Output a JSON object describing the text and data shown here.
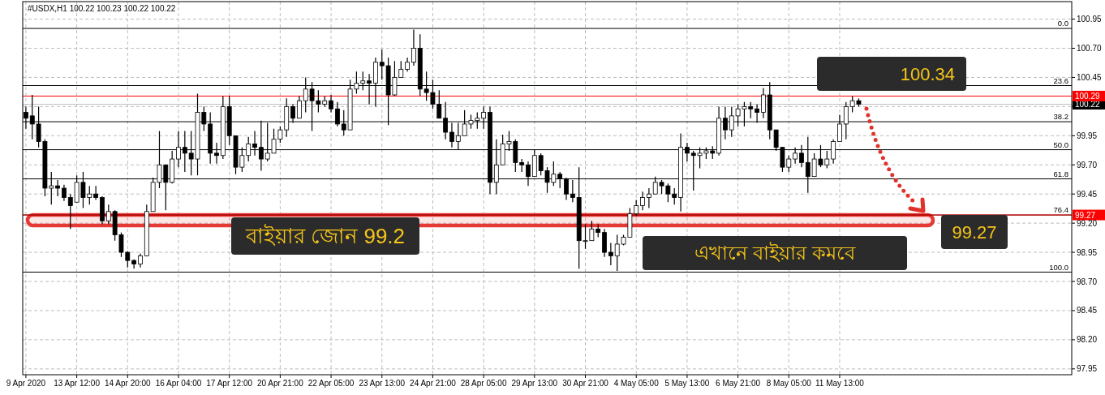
{
  "chart_data": {
    "type": "candlestick",
    "title": "#USDX,H1 100.22 100.23 100.22 100.22",
    "color": "#000000",
    "grid": true,
    "categories": [
      "9 Apr 2020",
      null,
      null,
      null,
      null,
      null,
      null,
      null,
      "13 Apr 12:00",
      null,
      null,
      null,
      null,
      null,
      null,
      null,
      "14 Apr 20:00",
      null,
      null,
      null,
      null,
      null,
      null,
      null,
      "16 Apr 04:00",
      null,
      null,
      null,
      null,
      null,
      null,
      null,
      "17 Apr 12:00",
      null,
      null,
      null,
      null,
      null,
      null,
      null,
      "20 Apr 21:00",
      null,
      null,
      null,
      null,
      null,
      null,
      null,
      "22 Apr 05:00",
      null,
      null,
      null,
      null,
      null,
      null,
      null,
      "23 Apr 13:00",
      null,
      null,
      null,
      null,
      null,
      null,
      null,
      "24 Apr 21:00",
      null,
      null,
      null,
      null,
      null,
      null,
      null,
      "28 Apr 05:00",
      null,
      null,
      null,
      null,
      null,
      null,
      null,
      "29 Apr 13:00",
      null,
      null,
      null,
      null,
      null,
      null,
      null,
      "30 Apr 21:00",
      null,
      null,
      null,
      null,
      null,
      null,
      null,
      "4 May 05:00",
      null,
      null,
      null,
      null,
      null,
      null,
      null,
      "5 May 13:00",
      null,
      null,
      null,
      null,
      null,
      null,
      null,
      "6 May 21:00",
      null,
      null,
      null,
      null,
      null,
      null,
      null,
      "8 May 05:00",
      null,
      null,
      null,
      null,
      null,
      null,
      null,
      "11 May 13:00",
      null,
      null,
      null,
      null,
      null,
      null,
      null,
      null,
      null,
      null,
      null,
      null,
      null,
      null,
      null,
      null,
      null,
      null,
      null,
      null,
      null,
      null,
      null,
      null,
      null,
      null,
      null,
      null,
      null,
      null,
      null,
      null,
      null,
      null,
      null,
      null
    ],
    "ohlc": [
      [
        100.15,
        100.2,
        100.01,
        100.1
      ],
      [
        100.12,
        100.3,
        99.92,
        100.05
      ],
      [
        100.05,
        100.2,
        99.85,
        99.9
      ],
      [
        99.9,
        99.92,
        99.43,
        99.5
      ],
      [
        99.5,
        99.64,
        99.36,
        99.52
      ],
      [
        99.52,
        99.57,
        99.43,
        99.5
      ],
      [
        99.5,
        99.53,
        99.39,
        99.42
      ],
      [
        99.42,
        99.45,
        99.15,
        99.35
      ],
      [
        99.38,
        99.61,
        99.38,
        99.55
      ],
      [
        99.55,
        99.64,
        99.33,
        99.42
      ],
      [
        99.42,
        99.52,
        99.36,
        99.45
      ],
      [
        99.45,
        99.52,
        99.4,
        99.42
      ],
      [
        99.42,
        99.43,
        99.19,
        99.22
      ],
      [
        99.22,
        99.36,
        99.19,
        99.3
      ],
      [
        99.3,
        99.31,
        99.05,
        99.1
      ],
      [
        99.1,
        99.12,
        98.91,
        98.95
      ],
      [
        98.95,
        98.96,
        98.82,
        98.88
      ],
      [
        98.88,
        98.89,
        98.81,
        98.85
      ],
      [
        98.85,
        98.94,
        98.82,
        98.92
      ],
      [
        98.92,
        99.36,
        98.92,
        99.3
      ],
      [
        99.3,
        99.59,
        99.3,
        99.55
      ],
      [
        99.55,
        99.99,
        99.5,
        99.7
      ],
      [
        99.7,
        99.7,
        99.31,
        99.55
      ],
      [
        99.55,
        99.82,
        99.54,
        99.75
      ],
      [
        99.75,
        99.99,
        99.68,
        99.85
      ],
      [
        99.85,
        99.99,
        99.64,
        99.8
      ],
      [
        99.8,
        99.99,
        99.61,
        99.75
      ],
      [
        99.75,
        100.31,
        99.61,
        100.15
      ],
      [
        100.15,
        100.2,
        99.99,
        100.05
      ],
      [
        100.05,
        100.15,
        99.71,
        99.8
      ],
      [
        99.8,
        99.89,
        99.71,
        99.78
      ],
      [
        99.78,
        100.29,
        99.75,
        100.2
      ],
      [
        100.2,
        100.29,
        99.87,
        99.95
      ],
      [
        99.95,
        99.95,
        99.62,
        99.68
      ],
      [
        99.68,
        99.85,
        99.64,
        99.78
      ],
      [
        99.78,
        99.94,
        99.73,
        99.88
      ],
      [
        99.88,
        99.99,
        99.78,
        99.85
      ],
      [
        99.85,
        100.08,
        99.65,
        99.75
      ],
      [
        99.75,
        100.06,
        99.73,
        99.8
      ],
      [
        99.8,
        100.01,
        99.8,
        99.92
      ],
      [
        99.92,
        100.03,
        99.89,
        100.0
      ],
      [
        100.0,
        100.27,
        99.94,
        100.2
      ],
      [
        100.2,
        100.22,
        100.06,
        100.1
      ],
      [
        100.1,
        100.29,
        100.1,
        100.25
      ],
      [
        100.25,
        100.45,
        100.15,
        100.35
      ],
      [
        100.35,
        100.41,
        99.99,
        100.25
      ],
      [
        100.25,
        100.34,
        100.15,
        100.22
      ],
      [
        100.22,
        100.29,
        100.2,
        100.25
      ],
      [
        100.25,
        100.3,
        100.15,
        100.18
      ],
      [
        100.18,
        100.24,
        100.03,
        100.05
      ],
      [
        100.05,
        100.17,
        99.95,
        100.0
      ],
      [
        100.0,
        100.43,
        100.0,
        100.35
      ],
      [
        100.35,
        100.5,
        100.31,
        100.4
      ],
      [
        100.4,
        100.5,
        100.34,
        100.42
      ],
      [
        100.42,
        100.48,
        100.22,
        100.4
      ],
      [
        100.4,
        100.62,
        100.2,
        100.58
      ],
      [
        100.58,
        100.69,
        100.43,
        100.55
      ],
      [
        100.55,
        100.62,
        100.04,
        100.3
      ],
      [
        100.3,
        100.59,
        100.29,
        100.45
      ],
      [
        100.45,
        100.59,
        100.45,
        100.52
      ],
      [
        100.52,
        100.62,
        100.5,
        100.58
      ],
      [
        100.58,
        100.86,
        100.55,
        100.7
      ],
      [
        100.7,
        100.82,
        100.29,
        100.35
      ],
      [
        100.35,
        100.5,
        100.25,
        100.32
      ],
      [
        100.32,
        100.43,
        100.18,
        100.22
      ],
      [
        100.22,
        100.34,
        100.1,
        100.1
      ],
      [
        100.1,
        100.24,
        99.92,
        99.98
      ],
      [
        99.98,
        100.06,
        99.85,
        99.9
      ],
      [
        99.9,
        100.06,
        99.83,
        99.95
      ],
      [
        99.95,
        100.17,
        99.95,
        100.05
      ],
      [
        100.05,
        100.13,
        100.01,
        100.08
      ],
      [
        100.08,
        100.15,
        100.01,
        100.1
      ],
      [
        100.1,
        100.2,
        100.01,
        100.15
      ],
      [
        100.15,
        100.2,
        99.45,
        99.55
      ],
      [
        99.55,
        99.92,
        99.45,
        99.7
      ],
      [
        99.7,
        99.96,
        99.7,
        99.88
      ],
      [
        99.88,
        99.99,
        99.82,
        99.9
      ],
      [
        99.9,
        99.92,
        99.64,
        99.72
      ],
      [
        99.72,
        99.75,
        99.64,
        99.7
      ],
      [
        99.7,
        99.73,
        99.52,
        99.6
      ],
      [
        99.6,
        99.83,
        99.6,
        99.78
      ],
      [
        99.78,
        99.8,
        99.61,
        99.65
      ],
      [
        99.65,
        99.68,
        99.46,
        99.55
      ],
      [
        99.55,
        99.73,
        99.52,
        99.62
      ],
      [
        99.62,
        99.64,
        99.5,
        99.58
      ],
      [
        99.58,
        99.59,
        99.4,
        99.45
      ],
      [
        99.45,
        99.57,
        99.38,
        99.42
      ],
      [
        99.42,
        99.68,
        98.81,
        99.05
      ],
      [
        99.05,
        99.19,
        98.98,
        99.05
      ],
      [
        99.05,
        99.22,
        99.05,
        99.15
      ],
      [
        99.15,
        99.19,
        99.08,
        99.12
      ],
      [
        99.12,
        99.15,
        98.91,
        98.95
      ],
      [
        98.95,
        99.03,
        98.84,
        98.92
      ],
      [
        98.92,
        99.1,
        98.79,
        99.02
      ],
      [
        99.02,
        99.1,
        99.01,
        99.08
      ],
      [
        99.08,
        99.33,
        99.08,
        99.28
      ],
      [
        99.28,
        99.4,
        99.26,
        99.35
      ],
      [
        99.35,
        99.47,
        99.31,
        99.42
      ],
      [
        99.42,
        99.5,
        99.33,
        99.45
      ],
      [
        99.45,
        99.6,
        99.45,
        99.55
      ],
      [
        99.55,
        99.57,
        99.45,
        99.52
      ],
      [
        99.52,
        99.54,
        99.38,
        99.45
      ],
      [
        99.45,
        99.5,
        99.36,
        99.42
      ],
      [
        99.42,
        99.97,
        99.3,
        99.85
      ],
      [
        99.85,
        99.89,
        99.73,
        99.8
      ],
      [
        99.8,
        99.82,
        99.48,
        99.78
      ],
      [
        99.78,
        99.85,
        99.67,
        99.8
      ],
      [
        99.8,
        99.85,
        99.75,
        99.82
      ],
      [
        99.82,
        99.86,
        99.75,
        99.8
      ],
      [
        99.8,
        100.2,
        99.78,
        100.1
      ],
      [
        100.1,
        100.2,
        99.92,
        100.0
      ],
      [
        100.0,
        100.2,
        99.94,
        100.12
      ],
      [
        100.12,
        100.22,
        100.03,
        100.18
      ],
      [
        100.18,
        100.24,
        100.03,
        100.2
      ],
      [
        100.2,
        100.24,
        100.1,
        100.18
      ],
      [
        100.18,
        100.22,
        100.06,
        100.15
      ],
      [
        100.15,
        100.36,
        100.1,
        100.3
      ],
      [
        100.3,
        100.41,
        99.92,
        100.0
      ],
      [
        100.0,
        100.0,
        99.82,
        99.85
      ],
      [
        99.85,
        99.85,
        99.64,
        99.68
      ],
      [
        99.68,
        99.78,
        99.64,
        99.75
      ],
      [
        99.75,
        99.85,
        99.71,
        99.8
      ],
      [
        99.8,
        99.87,
        99.68,
        99.72
      ],
      [
        99.72,
        99.94,
        99.46,
        99.6
      ],
      [
        99.6,
        99.8,
        99.6,
        99.75
      ],
      [
        99.75,
        99.87,
        99.68,
        99.7
      ],
      [
        99.7,
        99.82,
        99.67,
        99.75
      ],
      [
        99.75,
        99.92,
        99.71,
        99.9
      ],
      [
        99.9,
        100.13,
        99.9,
        100.05
      ],
      [
        100.05,
        100.24,
        99.92,
        100.2
      ],
      [
        100.2,
        100.29,
        100.15,
        100.25
      ],
      [
        100.25,
        100.27,
        100.2,
        100.22
      ],
      null,
      null,
      null,
      null,
      null,
      null,
      null,
      null,
      null,
      null,
      null,
      null,
      null,
      null,
      null,
      null,
      null,
      null,
      null,
      null,
      null,
      null,
      null,
      null,
      null,
      null,
      null,
      null,
      null,
      null,
      null,
      null,
      null
    ],
    "ylim": [
      97.9,
      101.1
    ],
    "yticks": [
      100.95,
      {
        "value": 100.7,
        "label": "100.70"
      },
      100.45,
      {
        "value": 100.2,
        "label": null
      },
      99.95,
      {
        "value": 99.7,
        "label": "99.70"
      },
      99.45,
      {
        "value": 99.2,
        "label": "99.20"
      },
      98.95,
      {
        "value": 98.7,
        "label": "98.70"
      },
      98.45,
      {
        "value": 98.2,
        "label": "98.20"
      },
      97.95
    ],
    "ref_lines": [
      {
        "axis": "y",
        "value": 100.87,
        "color": "#000000"
      },
      {
        "axis": "y",
        "value": 100.38,
        "color": "#000000"
      },
      {
        "axis": "y",
        "value": 100.07,
        "color": "#000000"
      },
      {
        "axis": "y",
        "value": 99.83,
        "color": "#000000"
      },
      {
        "axis": "y",
        "value": 99.58,
        "color": "#000000"
      },
      {
        "axis": "y",
        "value": 99.27,
        "color": "#000000"
      },
      {
        "axis": "y",
        "value": 98.78,
        "color": "#000000"
      },
      {
        "axis": "y",
        "value": 100.22,
        "label": "100.22",
        "color": "#c0c0c0"
      },
      {
        "axis": "y",
        "value": 100.29,
        "label": "100.29",
        "color": "#ff0000"
      },
      {
        "axis": "y",
        "value": 99.27,
        "label": "99.27",
        "color": "#ff0000"
      }
    ],
    "bands": [
      {
        "axis": "y",
        "from": 99.18,
        "to": 99.27,
        "color": "#e53935"
      }
    ],
    "annotations": [
      "বাইয়ার জোন 99.2",
      "এখানে বাইয়ার কমবে",
      "100.34",
      "99.27",
      {
        "text": "0.0",
        "y": 100.87
      },
      {
        "text": "23.6",
        "y": 100.38
      },
      {
        "text": "38.2",
        "y": 100.07
      },
      {
        "text": "50.0",
        "y": 99.83
      },
      {
        "text": "61.8",
        "y": 99.58
      },
      {
        "text": "76.4",
        "y": 99.27
      },
      {
        "text": "100.0",
        "y": 98.78
      }
    ]
  }
}
